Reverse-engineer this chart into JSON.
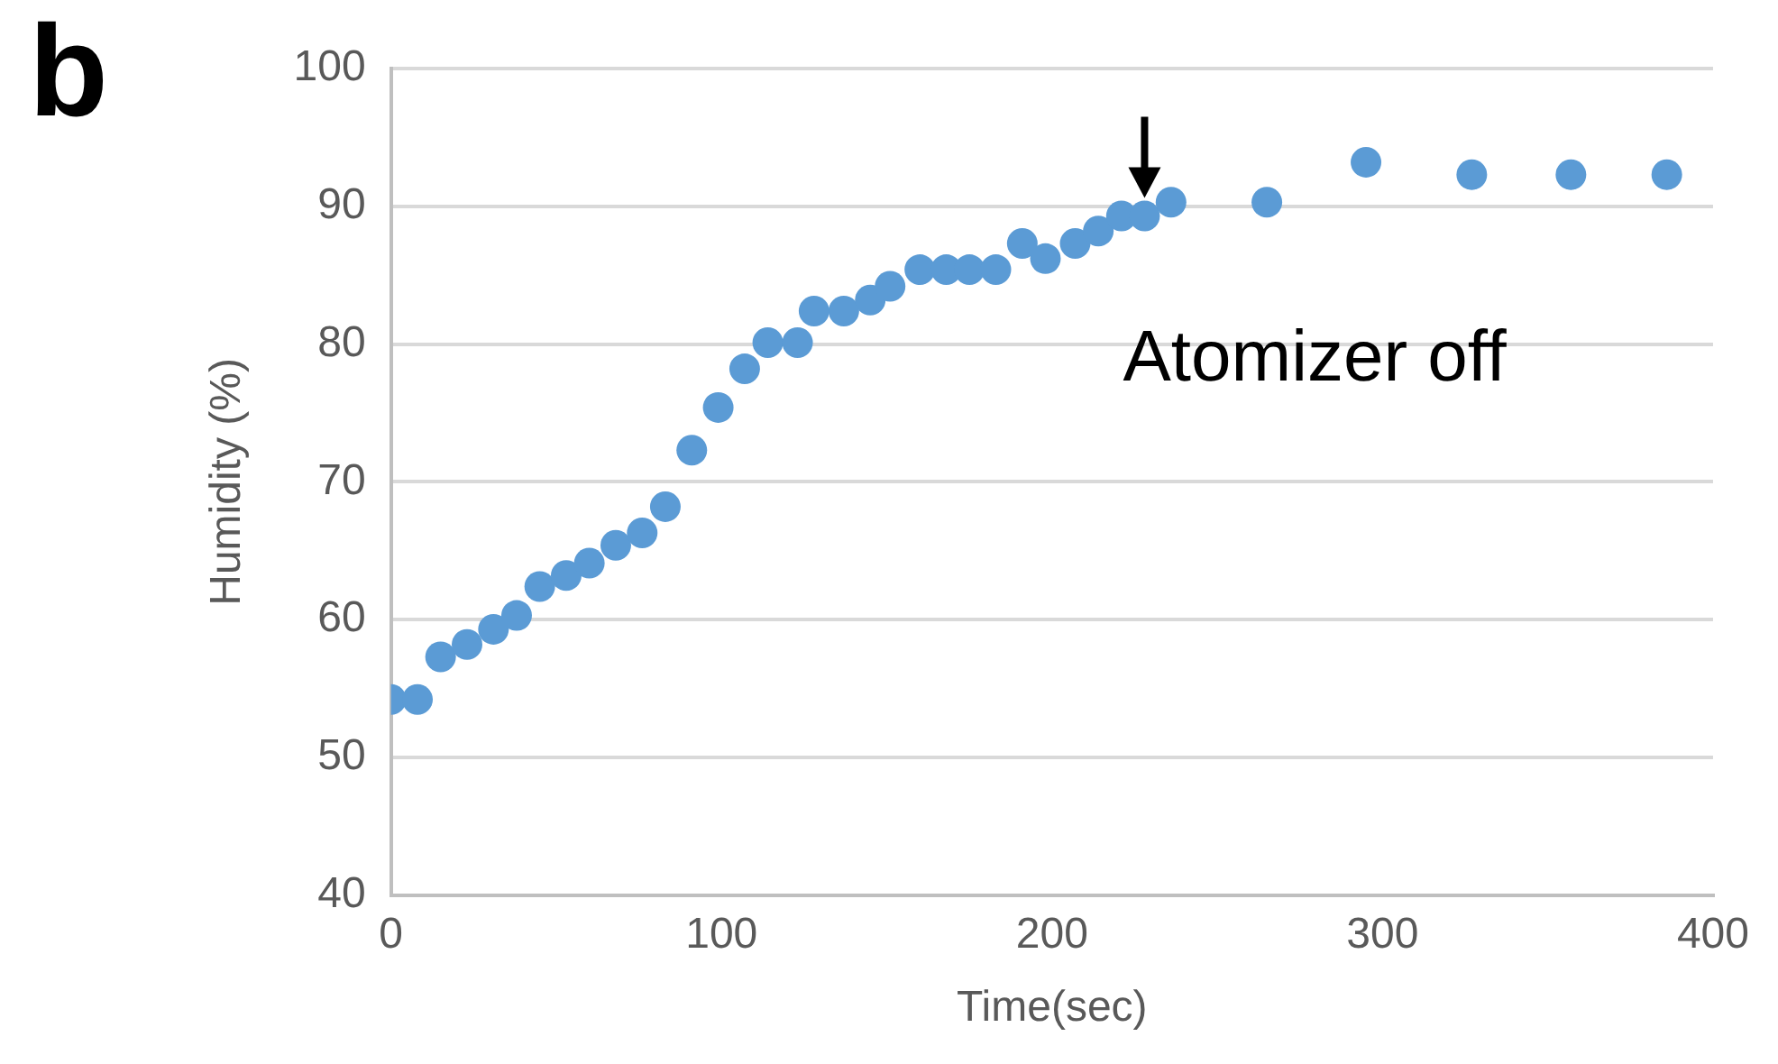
{
  "chart_data": {
    "type": "scatter",
    "xlabel": "Time(sec)",
    "ylabel": "Humidity (%)",
    "x": [
      0,
      8,
      15,
      23,
      31,
      38,
      45,
      53,
      60,
      68,
      76,
      83,
      91,
      99,
      107,
      114,
      123,
      128,
      137,
      145,
      151,
      160,
      168,
      175,
      183,
      191,
      198,
      207,
      214,
      221,
      228,
      236,
      265,
      295,
      327,
      357,
      386
    ],
    "series": [
      {
        "color": "#5b9bd5",
        "values": [
          54.2,
          54.2,
          57.3,
          58.2,
          59.3,
          60.3,
          62.4,
          63.2,
          64.1,
          65.4,
          66.3,
          68.2,
          72.3,
          75.4,
          78.2,
          80.1,
          80.1,
          82.4,
          82.4,
          83.2,
          84.2,
          85.4,
          85.4,
          85.4,
          85.4,
          87.3,
          86.2,
          87.3,
          88.2,
          89.3,
          89.3,
          90.3,
          90.3,
          93.2,
          92.3,
          92.3,
          92.3
        ]
      }
    ],
    "xlim": [
      0,
      400
    ],
    "xticks": [
      0,
      100,
      200,
      300,
      400
    ],
    "ylim": [
      40,
      100
    ],
    "yticks": [
      40,
      50,
      60,
      70,
      80,
      90,
      100
    ],
    "grid": "y",
    "legend": false,
    "marker": "circle",
    "annotations": [
      "b",
      {
        "text": "Atomizer off",
        "x": 228,
        "y": 89.3
      }
    ]
  }
}
